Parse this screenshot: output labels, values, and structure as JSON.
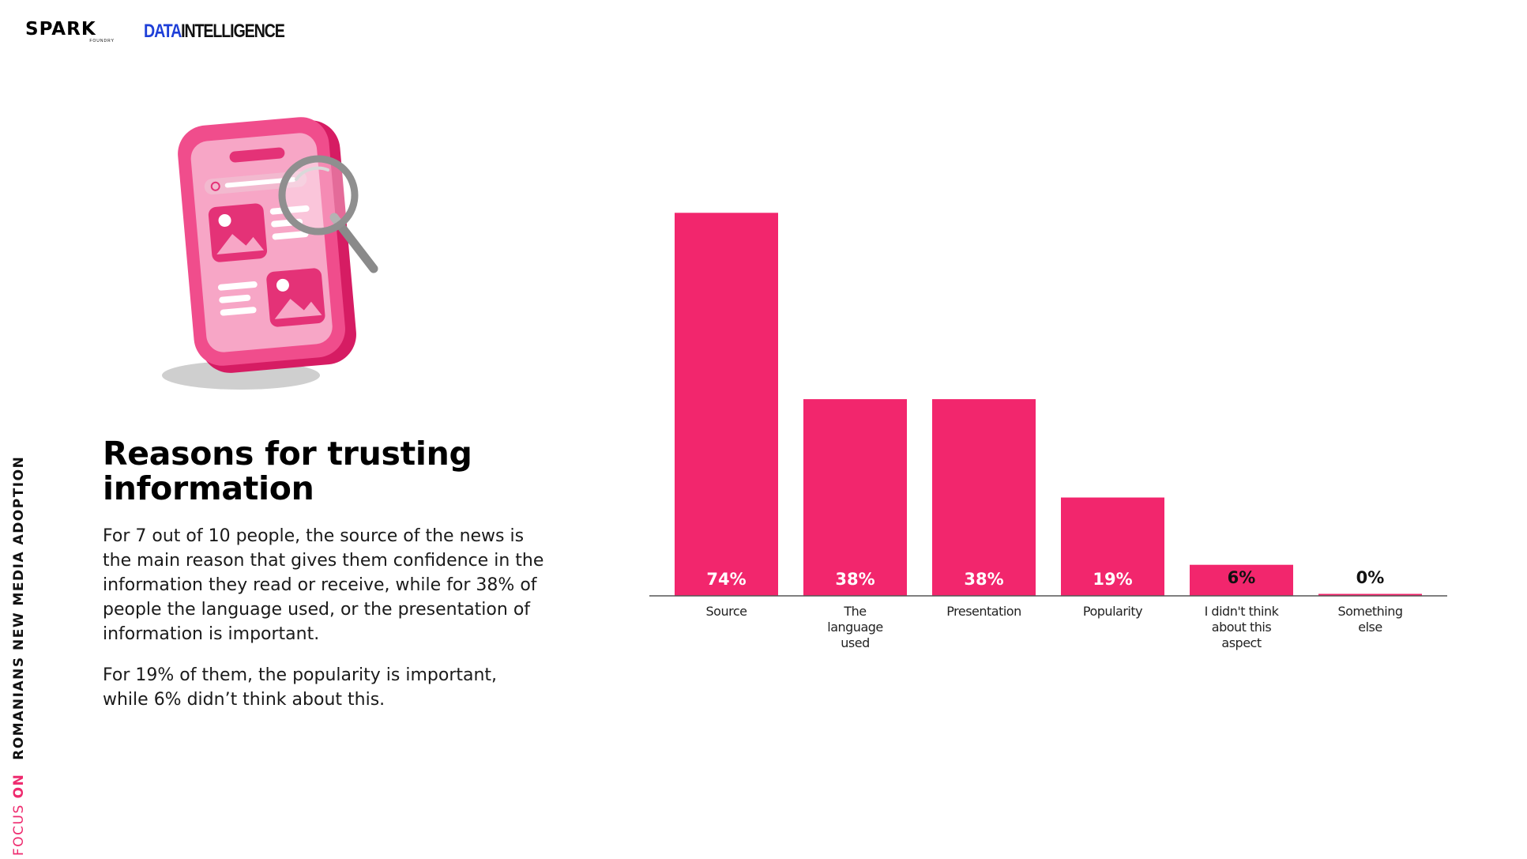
{
  "logos": {
    "spark": "SPARK",
    "spark_sub": "FOUNDRY",
    "data_intel_a": "DATA",
    "data_intel_b": "INTELLIGENCE"
  },
  "side_tag": {
    "focus": "FOCUS",
    "on": "ON",
    "rest": "ROMANIANS NEW MEDIA ADOPTION"
  },
  "content": {
    "title": "Reasons for trusting information",
    "paragraph1": "For 7 out of 10 people, the source of the news is the main reason that gives them confidence in the information they read or receive, while for 38% of people the language used, or the presentation of information is important.",
    "paragraph2": "For 19% of them, the popularity is important, while 6% didn’t think about this."
  },
  "colors": {
    "accent": "#f2266d",
    "data_blue": "#1e3fd8"
  },
  "chart_data": {
    "type": "bar",
    "categories": [
      "Source",
      "The language used",
      "Presentation",
      "Popularity",
      "I didn't think about this aspect",
      "Something else"
    ],
    "category_lines": [
      [
        "Source"
      ],
      [
        "The",
        "language",
        "used"
      ],
      [
        "Presentation"
      ],
      [
        "Popularity"
      ],
      [
        "I didn't think",
        "about this",
        "aspect"
      ],
      [
        "Something",
        "else"
      ]
    ],
    "values": [
      74,
      38,
      38,
      19,
      6,
      0
    ],
    "value_labels": [
      "74%",
      "38%",
      "38%",
      "19%",
      "6%",
      "0%"
    ],
    "title": "",
    "xlabel": "",
    "ylabel": "",
    "ylim": [
      0,
      80
    ],
    "grid": false,
    "legend": "none"
  }
}
